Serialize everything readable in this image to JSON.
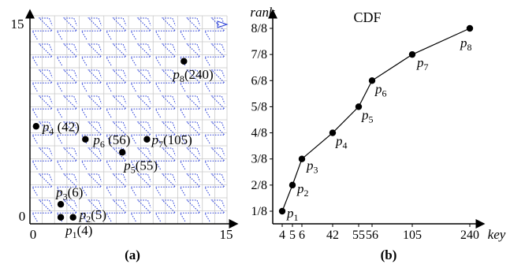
{
  "panel_a": {
    "caption": "(a)",
    "axis_ticks": {
      "y_top": "15",
      "y_bottom": "0",
      "x_left": "0",
      "x_right": "15"
    },
    "points": [
      {
        "id": "p1",
        "name": "p",
        "sub": "1",
        "label": "(4)",
        "x": 2,
        "y": 0
      },
      {
        "id": "p2",
        "name": "p",
        "sub": "2",
        "label": "(5)",
        "x": 3,
        "y": 0
      },
      {
        "id": "p3",
        "name": "p",
        "sub": "3",
        "label": "(6)",
        "x": 2,
        "y": 1
      },
      {
        "id": "p4",
        "name": "p",
        "sub": "4",
        "label": " (42)",
        "x": 0,
        "y": 7
      },
      {
        "id": "p5",
        "name": "p",
        "sub": "5",
        "label": "(55)",
        "x": 7,
        "y": 5
      },
      {
        "id": "p6",
        "name": "p",
        "sub": "6",
        "label": " (56)",
        "x": 4,
        "y": 6
      },
      {
        "id": "p7",
        "name": "p",
        "sub": "7",
        "label": "(105)",
        "x": 9,
        "y": 6
      },
      {
        "id": "p8",
        "name": "p",
        "sub": "8",
        "label": "(240)",
        "x": 12,
        "y": 12
      }
    ]
  },
  "panel_b": {
    "caption": "(b)",
    "title": "CDF"
  },
  "chart_data": {
    "type": "line",
    "title": "CDF",
    "xlabel": "key",
    "ylabel": "rank",
    "x": [
      4,
      5,
      6,
      42,
      55,
      56,
      105,
      240
    ],
    "x_tick_labels": [
      "4",
      "5",
      "6",
      "42",
      "55",
      "56",
      "105",
      "240"
    ],
    "y_tick_labels": [
      "1/8",
      "2/8",
      "3/8",
      "4/8",
      "5/8",
      "6/8",
      "7/8",
      "8/8"
    ],
    "series": [
      {
        "values": [
          0.125,
          0.25,
          0.375,
          0.5,
          0.625,
          0.75,
          0.875,
          1.0
        ],
        "point_labels": [
          "p1",
          "p2",
          "p3",
          "p4",
          "p5",
          "p6",
          "p7",
          "p8"
        ]
      }
    ]
  }
}
